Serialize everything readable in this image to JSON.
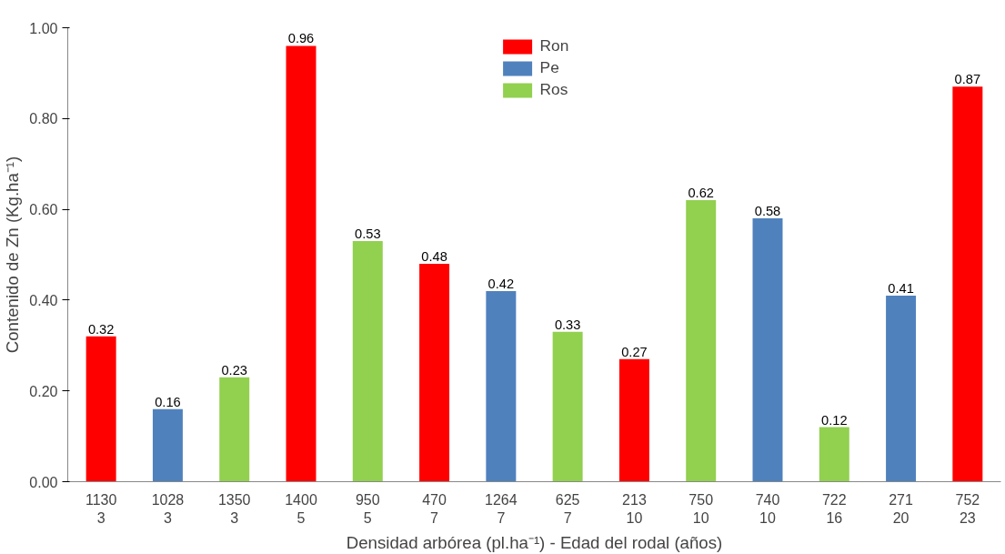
{
  "chart_data": {
    "type": "bar",
    "xlabel": "Densidad arbórea (pl.ha⁻¹) - Edad del rodal (años)",
    "ylabel": "Contenido de Zn (Kg.ha⁻¹)",
    "categories": [
      "1130\n3",
      "1028\n3",
      "1350\n3",
      "1400\n5",
      "950\n5",
      "470\n7",
      "1264\n7",
      "625\n7",
      "213\n10",
      "750\n10",
      "740\n10",
      "722\n16",
      "271\n20",
      "752\n23"
    ],
    "series": [
      {
        "name": "Ron",
        "color": "#ff0000",
        "values": [
          0.32,
          null,
          null,
          0.96,
          null,
          0.48,
          null,
          null,
          0.27,
          null,
          null,
          null,
          null,
          0.87
        ]
      },
      {
        "name": "Pe",
        "color": "#4f81bd",
        "values": [
          null,
          0.16,
          null,
          null,
          null,
          null,
          0.42,
          null,
          null,
          null,
          0.58,
          null,
          0.41,
          null
        ]
      },
      {
        "name": "Ros",
        "color": "#92d050",
        "values": [
          null,
          null,
          0.23,
          null,
          0.53,
          null,
          null,
          0.33,
          null,
          0.62,
          null,
          0.12,
          null,
          null
        ]
      }
    ],
    "ylim": [
      0,
      1
    ],
    "yticks": [
      {
        "value": 0,
        "label": "0.00"
      },
      {
        "value": 0.2,
        "label": "0.20"
      },
      {
        "value": 0.4,
        "label": "0.40"
      },
      {
        "value": 0.6,
        "label": "0.60"
      },
      {
        "value": 0.8,
        "label": "0.80"
      },
      {
        "value": 1,
        "label": "1.00"
      }
    ],
    "grid": false,
    "legend": "top",
    "data_labels": true
  }
}
